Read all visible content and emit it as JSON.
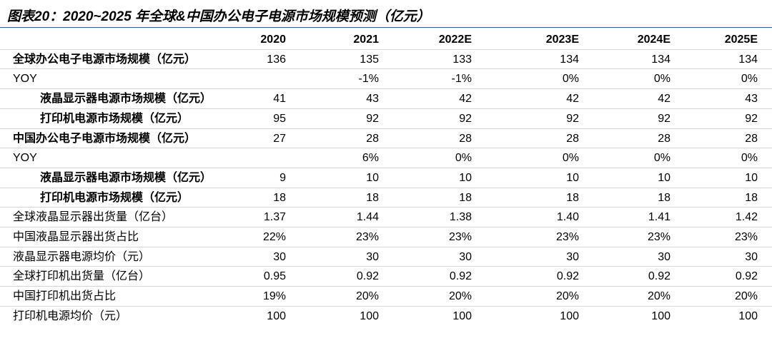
{
  "header": {
    "title": "图表20：2020~2025 年全球&中国办公电子电源市场规模预测（亿元）"
  },
  "table": {
    "columns": [
      "2020",
      "2021",
      "2022E",
      "2023E",
      "2024E",
      "2025E"
    ],
    "rows": [
      {
        "label": "全球办公电子电源市场规模（亿元）",
        "values": [
          "136",
          "135",
          "133",
          "134",
          "134",
          "134"
        ]
      },
      {
        "label": "YOY",
        "values": [
          null,
          "-1%",
          "-1%",
          "0%",
          "0%",
          "0%"
        ]
      },
      {
        "label": "液晶显示器电源市场规模（亿元）",
        "values": [
          "41",
          "43",
          "42",
          "42",
          "42",
          "43"
        ]
      },
      {
        "label": "打印机电源市场规模（亿元）",
        "values": [
          "95",
          "92",
          "92",
          "92",
          "92",
          "92"
        ]
      },
      {
        "label": "中国办公电子电源市场规模（亿元）",
        "values": [
          "27",
          "28",
          "28",
          "28",
          "28",
          "28"
        ]
      },
      {
        "label": "YOY",
        "values": [
          null,
          "6%",
          "0%",
          "0%",
          "0%",
          "0%"
        ]
      },
      {
        "label": "液晶显示器电源市场规模（亿元）",
        "values": [
          "9",
          "10",
          "10",
          "10",
          "10",
          "10"
        ]
      },
      {
        "label": "打印机电源市场规模（亿元）",
        "values": [
          "18",
          "18",
          "18",
          "18",
          "18",
          "18"
        ]
      },
      {
        "label": "全球液晶显示器出货量（亿台）",
        "values": [
          "1.37",
          "1.44",
          "1.38",
          "1.40",
          "1.41",
          "1.42"
        ]
      },
      {
        "label": "中国液晶显示器出货占比",
        "values": [
          "22%",
          "23%",
          "23%",
          "23%",
          "23%",
          "23%"
        ]
      },
      {
        "label": "液晶显示器电源均价（元）",
        "values": [
          "30",
          "30",
          "30",
          "30",
          "30",
          "30"
        ]
      },
      {
        "label": "全球打印机出货量（亿台）",
        "values": [
          "0.95",
          "0.92",
          "0.92",
          "0.92",
          "0.92",
          "0.92"
        ]
      },
      {
        "label": "中国打印机出货占比",
        "values": [
          "19%",
          "20%",
          "20%",
          "20%",
          "20%",
          "20%"
        ]
      },
      {
        "label": "打印机电源均价（元）",
        "values": [
          "100",
          "100",
          "100",
          "100",
          "100",
          "100"
        ]
      }
    ]
  }
}
